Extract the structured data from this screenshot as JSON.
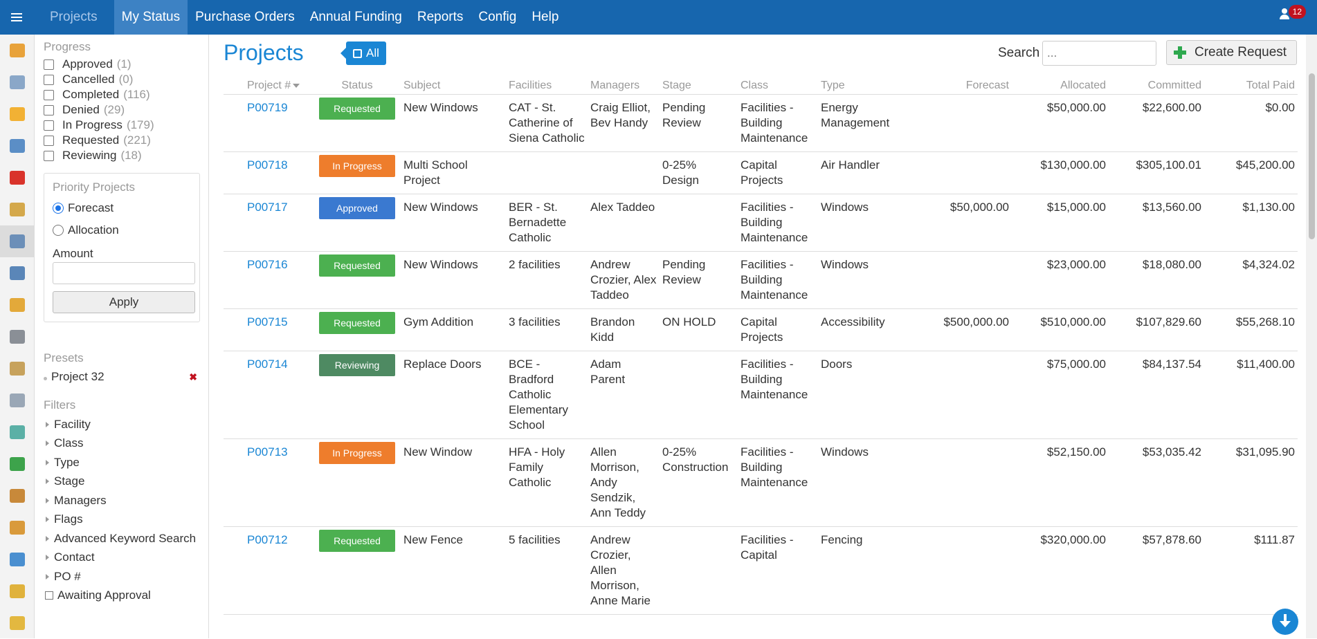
{
  "nav": {
    "items": [
      {
        "label": "Projects",
        "state": "dim"
      },
      {
        "label": "My Status",
        "state": "active"
      },
      {
        "label": "Purchase Orders",
        "state": ""
      },
      {
        "label": "Annual Funding",
        "state": ""
      },
      {
        "label": "Reports",
        "state": ""
      },
      {
        "label": "Config",
        "state": ""
      },
      {
        "label": "Help",
        "state": ""
      }
    ],
    "notification_count": "12"
  },
  "iconbar": [
    {
      "icon": "home-icon",
      "color": "#e8a23a"
    },
    {
      "icon": "document-icon",
      "color": "#8aa7c8"
    },
    {
      "icon": "hardhat-icon",
      "color": "#f2b134"
    },
    {
      "icon": "computer-icon",
      "color": "#5b8ec6"
    },
    {
      "icon": "first-aid-icon",
      "color": "#d9332b"
    },
    {
      "icon": "folder-icon",
      "color": "#d4a84b"
    },
    {
      "icon": "dashboard-icon",
      "color": "#6c8fb8"
    },
    {
      "icon": "monitor-icon",
      "color": "#5a86b8"
    },
    {
      "icon": "warning-sign-icon",
      "color": "#e3a93a"
    },
    {
      "icon": "wrench-icon",
      "color": "#8a8f96"
    },
    {
      "icon": "clipboard-icon",
      "color": "#c7a25c"
    },
    {
      "icon": "inspect-icon",
      "color": "#9aa7b6"
    },
    {
      "icon": "flask-icon",
      "color": "#5bb0a6"
    },
    {
      "icon": "puzzle-icon",
      "color": "#3da34b"
    },
    {
      "icon": "safe-icon",
      "color": "#c8893a"
    },
    {
      "icon": "box-icon",
      "color": "#d99a3b"
    },
    {
      "icon": "clock-icon",
      "color": "#4a8fd0"
    },
    {
      "icon": "key-icon",
      "color": "#e0b23c"
    },
    {
      "icon": "bus-icon",
      "color": "#e3b840"
    }
  ],
  "sidebar": {
    "progress_title": "Progress",
    "progress": [
      {
        "label": "Approved",
        "count": "(1)"
      },
      {
        "label": "Cancelled",
        "count": "(0)"
      },
      {
        "label": "Completed",
        "count": "(116)"
      },
      {
        "label": "Denied",
        "count": "(29)"
      },
      {
        "label": "In Progress",
        "count": "(179)"
      },
      {
        "label": "Requested",
        "count": "(221)"
      },
      {
        "label": "Reviewing",
        "count": "(18)"
      }
    ],
    "priority_title": "Priority Projects",
    "priority_options": [
      {
        "label": "Forecast",
        "selected": true
      },
      {
        "label": "Allocation",
        "selected": false
      }
    ],
    "amount_label": "Amount",
    "apply_label": "Apply",
    "presets_title": "Presets",
    "presets": [
      "Project 32"
    ],
    "filters_title": "Filters",
    "filters": [
      "Facility",
      "Class",
      "Type",
      "Stage",
      "Managers",
      "Flags",
      "Advanced Keyword Search",
      "Contact",
      "PO #"
    ],
    "awaiting_label": "Awaiting Approval"
  },
  "main": {
    "title": "Projects",
    "all_label": "All",
    "search_label": "Search",
    "search_placeholder": "...",
    "create_label": "Create Request",
    "columns": [
      "Project #",
      "Status",
      "Subject",
      "Facilities",
      "Managers",
      "Stage",
      "Class",
      "Type",
      "Forecast",
      "Allocated",
      "Committed",
      "Total Paid"
    ],
    "rows": [
      {
        "id": "P00719",
        "status": "Requested",
        "status_color": "#4cb050",
        "subject": "New Windows",
        "facilities": "CAT - St. Catherine of Siena Catholic",
        "managers": "Craig Elliot, Bev Handy",
        "stage": "Pending Review",
        "class": "Facilities - Building Maintenance",
        "type": "Energy Management",
        "forecast": "",
        "allocated": "$50,000.00",
        "committed": "$22,600.00",
        "paid": "$0.00"
      },
      {
        "id": "P00718",
        "status": "In Progress",
        "status_color": "#ee7d2c",
        "subject": "Multi School Project",
        "facilities": "",
        "managers": "",
        "stage": "0-25% Design",
        "class": "Capital Projects",
        "type": "Air Handler",
        "forecast": "",
        "allocated": "$130,000.00",
        "committed": "$305,100.01",
        "paid": "$45,200.00"
      },
      {
        "id": "P00717",
        "status": "Approved",
        "status_color": "#3a79d0",
        "subject": "New Windows",
        "facilities": "BER - St. Bernadette Catholic",
        "managers": "Alex Taddeo",
        "stage": "",
        "class": "Facilities - Building Maintenance",
        "type": "Windows",
        "forecast": "$50,000.00",
        "allocated": "$15,000.00",
        "committed": "$13,560.00",
        "paid": "$1,130.00"
      },
      {
        "id": "P00716",
        "status": "Requested",
        "status_color": "#4cb050",
        "subject": "New Windows",
        "facilities": "2 facilities",
        "managers": "Andrew Crozier, Alex Taddeo",
        "stage": "Pending Review",
        "class": "Facilities - Building Maintenance",
        "type": "Windows",
        "forecast": "",
        "allocated": "$23,000.00",
        "committed": "$18,080.00",
        "paid": "$4,324.02"
      },
      {
        "id": "P00715",
        "status": "Requested",
        "status_color": "#4cb050",
        "subject": "Gym Addition",
        "facilities": "3 facilities",
        "managers": "Brandon Kidd",
        "stage": "ON HOLD",
        "class": "Capital Projects",
        "type": "Accessibility",
        "forecast": "$500,000.00",
        "allocated": "$510,000.00",
        "committed": "$107,829.60",
        "paid": "$55,268.10"
      },
      {
        "id": "P00714",
        "status": "Reviewing",
        "status_color": "#4e8a62",
        "subject": "Replace Doors",
        "facilities": "BCE - Bradford Catholic Elementary School",
        "managers": "Adam Parent",
        "stage": "",
        "class": "Facilities - Building Maintenance",
        "type": "Doors",
        "forecast": "",
        "allocated": "$75,000.00",
        "committed": "$84,137.54",
        "paid": "$11,400.00"
      },
      {
        "id": "P00713",
        "status": "In Progress",
        "status_color": "#ee7d2c",
        "subject": "New Window",
        "facilities": "HFA - Holy Family Catholic",
        "managers": "Allen Morrison, Andy Sendzik, Ann Teddy",
        "stage": "0-25% Construction",
        "class": "Facilities - Building Maintenance",
        "type": "Windows",
        "forecast": "",
        "allocated": "$52,150.00",
        "committed": "$53,035.42",
        "paid": "$31,095.90"
      },
      {
        "id": "P00712",
        "status": "Requested",
        "status_color": "#4cb050",
        "subject": "New Fence",
        "facilities": "5 facilities",
        "managers": "Andrew Crozier, Allen Morrison, Anne Marie",
        "stage": "",
        "class": "Facilities - Capital",
        "type": "Fencing",
        "forecast": "",
        "allocated": "$320,000.00",
        "committed": "$57,878.60",
        "paid": "$111.87"
      }
    ]
  }
}
